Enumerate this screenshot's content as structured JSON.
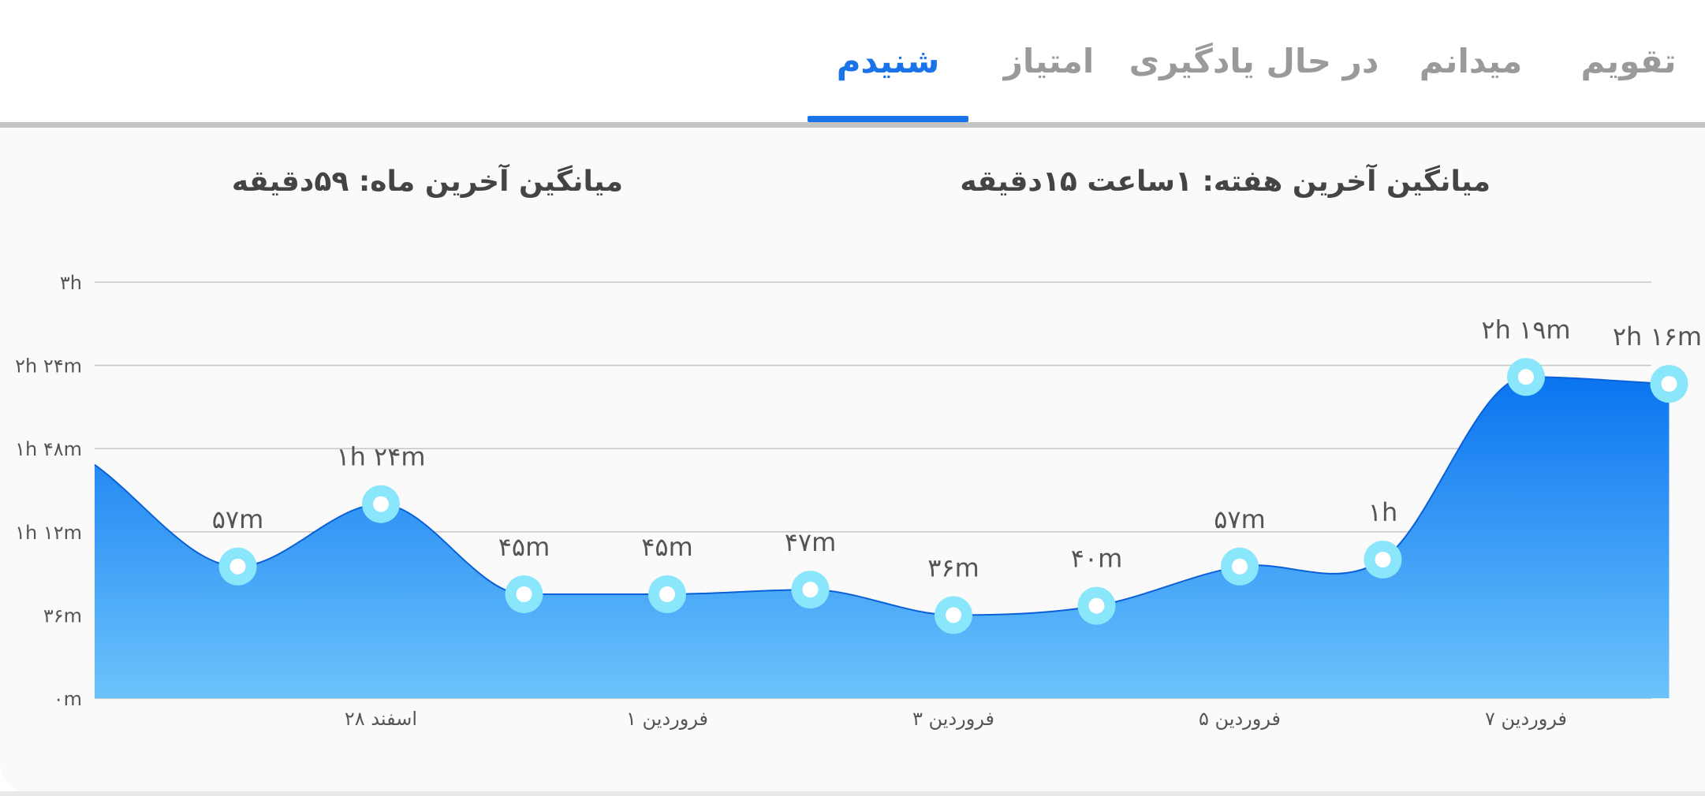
{
  "tabs": [
    {
      "label": "تقویم",
      "active": false
    },
    {
      "label": "میدانم",
      "active": false
    },
    {
      "label": "در حال یادگیری",
      "active": false
    },
    {
      "label": "امتیاز",
      "active": false
    },
    {
      "label": "شنیدم",
      "active": true
    }
  ],
  "summary": {
    "weekly_average": "میانگین آخرین هفته: ۱ساعت  ۱۵دقیقه",
    "monthly_average": "میانگین آخرین ماه: ۵۹دقیقه"
  },
  "colors": {
    "accent": "#1a73e8",
    "area_top": "#0a74f0",
    "area_bottom": "#6cc3fb",
    "marker_ring": "#8ae6fa"
  },
  "chart_data": {
    "type": "area",
    "y_unit": "minutes",
    "ylim": [
      0,
      180
    ],
    "y_ticks": [
      {
        "value": 0,
        "label": "۰m"
      },
      {
        "value": 36,
        "label": "۳۶m"
      },
      {
        "value": 72,
        "label": "۱h ۱۲m"
      },
      {
        "value": 108,
        "label": "۱h ۴۸m"
      },
      {
        "value": 144,
        "label": "۲h ۲۴m"
      },
      {
        "value": 180,
        "label": "۳h"
      }
    ],
    "x_ticks": [
      {
        "index": 2,
        "label": "۲۸ اسفند"
      },
      {
        "index": 4,
        "label": "۱ فروردین"
      },
      {
        "index": 6,
        "label": "۳ فروردین"
      },
      {
        "index": 8,
        "label": "۵ فروردین"
      },
      {
        "index": 10,
        "label": "۷ فروردین"
      }
    ],
    "grid": true,
    "curve_start_value": 101,
    "points": [
      {
        "index": 1,
        "value": 57,
        "label": "۵۷m"
      },
      {
        "index": 2,
        "value": 84,
        "label": "۱h ۲۴m"
      },
      {
        "index": 3,
        "value": 45,
        "label": "۴۵m"
      },
      {
        "index": 4,
        "value": 45,
        "label": "۴۵m"
      },
      {
        "index": 5,
        "value": 47,
        "label": "۴۷m"
      },
      {
        "index": 6,
        "value": 36,
        "label": "۳۶m"
      },
      {
        "index": 7,
        "value": 40,
        "label": "۴۰m"
      },
      {
        "index": 8,
        "value": 57,
        "label": "۵۷m"
      },
      {
        "index": 9,
        "value": 60,
        "label": "۱h"
      },
      {
        "index": 10,
        "value": 139,
        "label": "۲h ۱۹m"
      },
      {
        "index": 11,
        "value": 136,
        "label": "۲h ۱۶m"
      }
    ]
  }
}
